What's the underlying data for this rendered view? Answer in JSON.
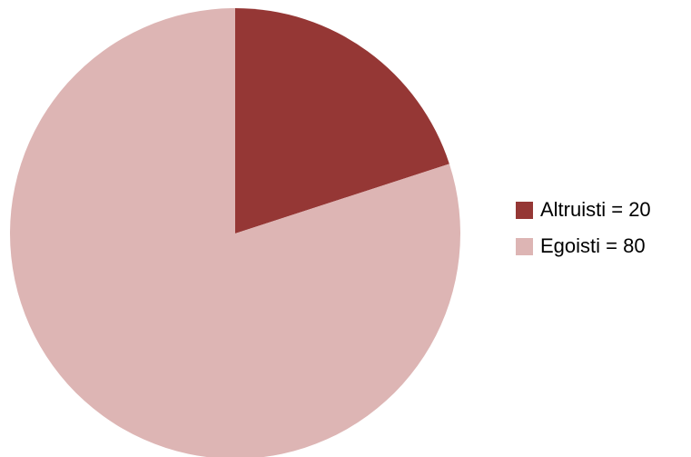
{
  "chart_data": {
    "type": "pie",
    "title": "",
    "start_angle_deg": 0,
    "direction": "clockwise",
    "legend_position": "right",
    "slices": [
      {
        "label": "Altruisti = 20",
        "value": 20,
        "color": "#953735"
      },
      {
        "label": "Egoisti = 80",
        "value": 80,
        "color": "#DDB5B4"
      }
    ]
  }
}
